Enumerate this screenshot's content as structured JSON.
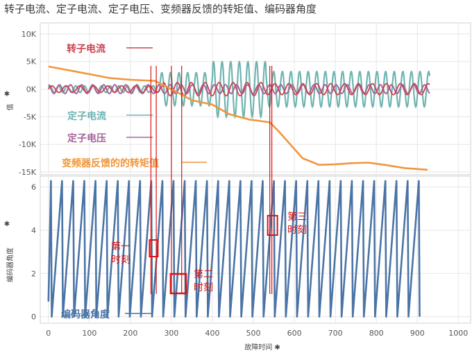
{
  "title": "转子电流、定子电流、定子电压、变频器反馈的转矩值、编码器角度",
  "colors": {
    "rotor_current": "#c9424f",
    "stator_current": "#6fb4b1",
    "stator_voltage": "#a5649b",
    "torque": "#f0963c",
    "encoder": "#4a74a6",
    "marker": "#dd1111",
    "grid": "#e6e6e6"
  },
  "chart_data": [
    {
      "type": "line",
      "ylabel": "值",
      "ylim": [
        -15500,
        12000
      ],
      "yticks": [
        10000,
        5000,
        0,
        -5000,
        -10000,
        -15000
      ],
      "ytick_labels": [
        "10K",
        "5K",
        "0K",
        "-5K",
        "-10K",
        "-15K"
      ],
      "series": [
        {
          "name": "转子电流",
          "color_key": "rotor_current",
          "baseline": 0,
          "segments": [
            {
              "x_from": 0,
              "x_to": 280,
              "amplitude": 600
            },
            {
              "x_from": 280,
              "x_to": 530,
              "amplitude": 1200
            },
            {
              "x_from": 530,
              "x_to": 930,
              "amplitude": 1000
            }
          ]
        },
        {
          "name": "定子电流",
          "color_key": "stator_current",
          "baseline": 0,
          "segments": [
            {
              "x_from": 0,
              "x_to": 270,
              "amplitude": 600
            },
            {
              "x_from": 270,
              "x_to": 400,
              "amplitude": 3000
            },
            {
              "x_from": 400,
              "x_to": 530,
              "amplitude": 5000
            },
            {
              "x_from": 530,
              "x_to": 930,
              "amplitude": 3200
            }
          ]
        },
        {
          "name": "定子电压",
          "color_key": "stator_voltage",
          "baseline": 0,
          "segments": [
            {
              "x_from": 0,
              "x_to": 930,
              "amplitude": 800
            }
          ]
        },
        {
          "name": "变频器反馈的的转矩值",
          "color_key": "torque",
          "points": [
            [
              0,
              4100
            ],
            [
              80,
              3000
            ],
            [
              150,
              2000
            ],
            [
              200,
              1700
            ],
            [
              260,
              1500
            ],
            [
              300,
              0
            ],
            [
              350,
              -2000
            ],
            [
              400,
              -2800
            ],
            [
              440,
              -4500
            ],
            [
              490,
              -5500
            ],
            [
              540,
              -6000
            ],
            [
              560,
              -7500
            ],
            [
              590,
              -10000
            ],
            [
              620,
              -12500
            ],
            [
              660,
              -13700
            ],
            [
              700,
              -13600
            ],
            [
              740,
              -13400
            ],
            [
              780,
              -13300
            ],
            [
              820,
              -13700
            ],
            [
              870,
              -14300
            ],
            [
              925,
              -14600
            ]
          ]
        }
      ]
    },
    {
      "type": "line",
      "ylabel": "编码器角度",
      "xlabel": "故障时间",
      "xlim": [
        -20,
        1030
      ],
      "ylim": [
        -0.3,
        6.5
      ],
      "xticks": [
        0,
        100,
        200,
        300,
        400,
        500,
        600,
        700,
        800,
        900,
        1000
      ],
      "yticks": [
        0,
        2,
        4,
        6
      ],
      "series": [
        {
          "name": "编码器角度",
          "color_key": "encoder",
          "shape": "sawtooth",
          "x_start": 0,
          "x_end": 925,
          "period": 27.2,
          "min": 0,
          "max": 6.28
        }
      ]
    }
  ],
  "annotations": {
    "moment_1": "第一\n时刻",
    "moment_2": "第二\n时刻",
    "moment_3": "第三\n时刻",
    "moment_1_x": [
      250,
      263
    ],
    "moment_2_x": [
      300,
      325
    ],
    "moment_3_x": [
      540,
      545
    ]
  }
}
